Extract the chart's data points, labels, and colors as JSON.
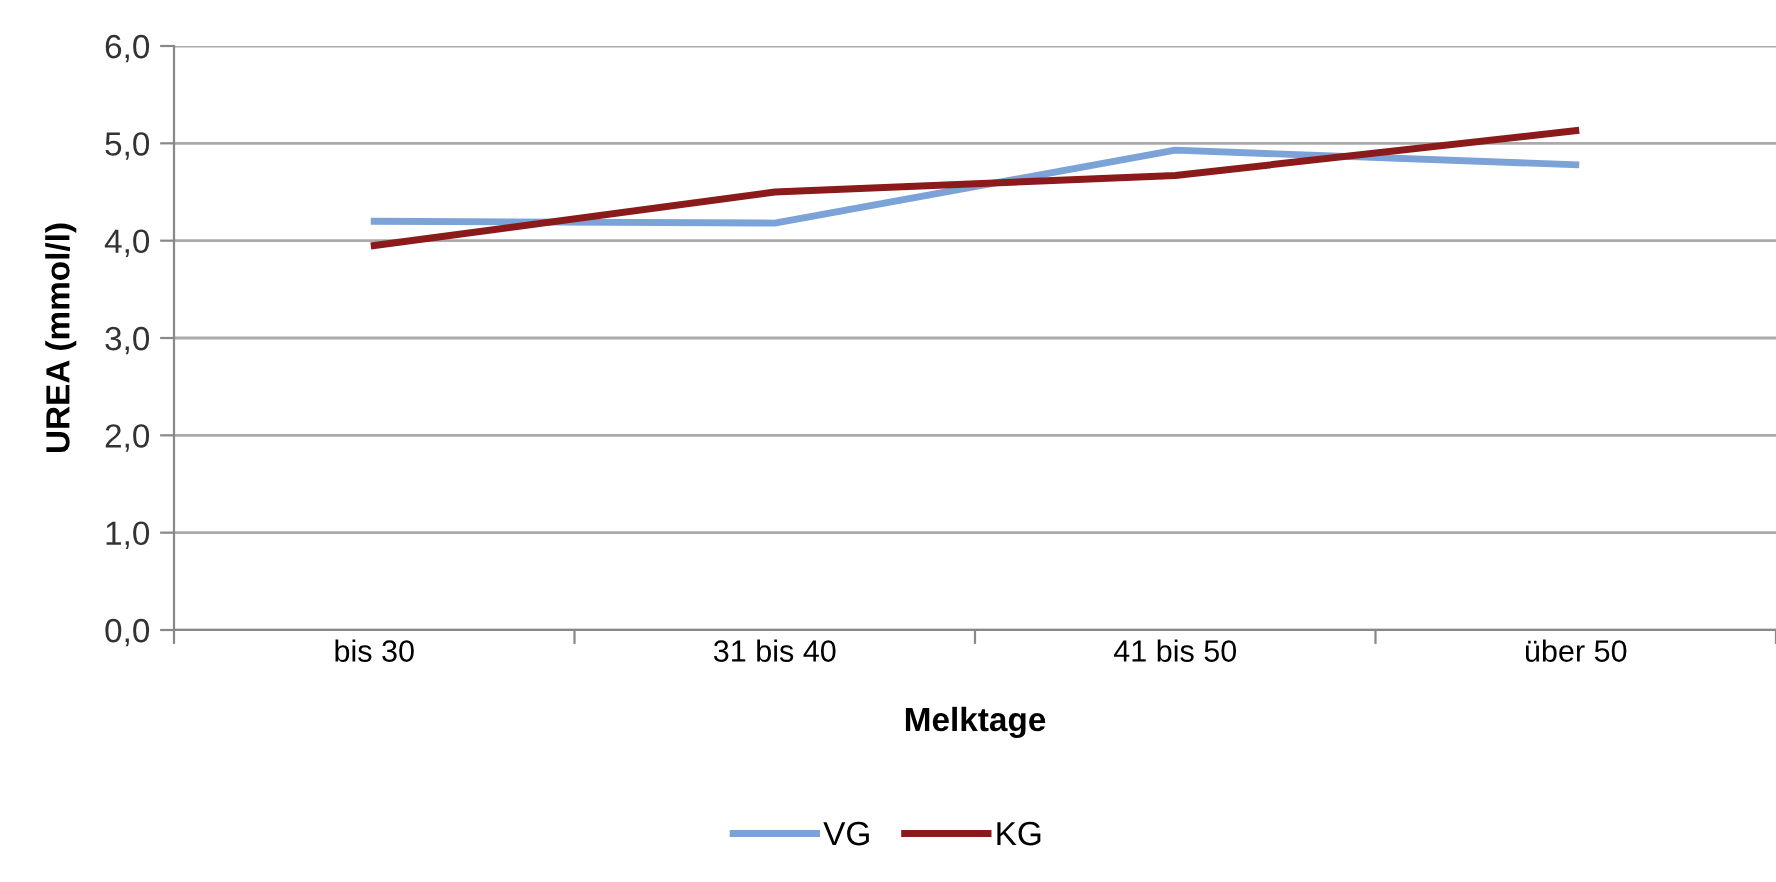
{
  "chart_data": {
    "type": "line",
    "xlabel": "Melktage",
    "ylabel": "UREA (mmol/l)",
    "categories": [
      "bis 30",
      "31 bis 40",
      "41 bis 50",
      "über 50"
    ],
    "series": [
      {
        "name": "VG",
        "color": "#7ba3d8",
        "values": [
          4.2,
          4.18,
          4.93,
          4.78
        ]
      },
      {
        "name": "KG",
        "color": "#8b1a1a",
        "values": [
          3.95,
          4.5,
          4.67,
          5.13
        ]
      }
    ],
    "ylim": [
      0,
      6
    ],
    "yticks": [
      {
        "value": 0,
        "label": "0,0"
      },
      {
        "value": 1,
        "label": "1,0"
      },
      {
        "value": 2,
        "label": "2,0"
      },
      {
        "value": 3,
        "label": "3,0"
      },
      {
        "value": 4,
        "label": "4,0"
      },
      {
        "value": 5,
        "label": "5,0"
      },
      {
        "value": 6,
        "label": "6,0"
      }
    ],
    "grid": "y",
    "legend": "bottom",
    "marker": "none",
    "line_style": "solid"
  }
}
